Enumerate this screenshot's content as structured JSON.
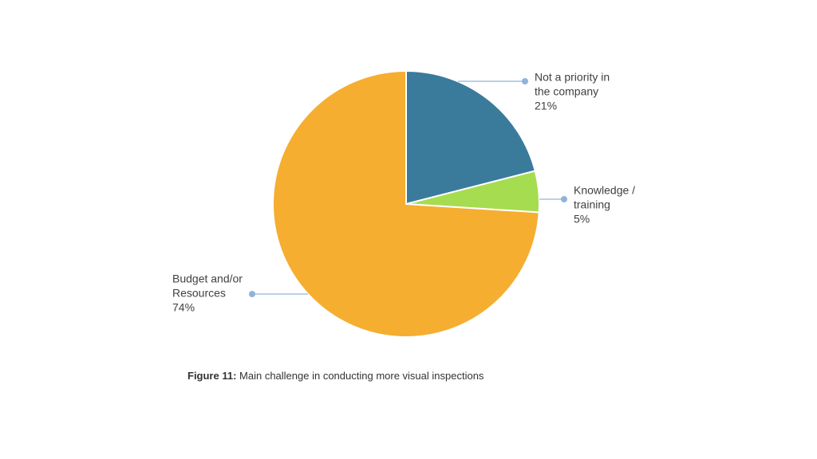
{
  "chart_data": {
    "type": "pie",
    "title": "",
    "slices": [
      {
        "label_lines": [
          "Not a priority in",
          "the company"
        ],
        "value": 21,
        "value_label": "21%",
        "color": "#3a7b9c"
      },
      {
        "label_lines": [
          "Knowledge /",
          "training"
        ],
        "value": 5,
        "value_label": "5%",
        "color": "#a6dc4f"
      },
      {
        "label_lines": [
          "Budget and/or",
          "Resources"
        ],
        "value": 74,
        "value_label": "74%",
        "color": "#f5ae30"
      }
    ],
    "start_angle_deg": 0,
    "direction": "clockwise",
    "leader_line_color": "#8fb3d9",
    "slice_border_color": "#ffffff"
  },
  "caption": {
    "label": "Figure 11:",
    "text": " Main challenge in conducting more visual inspections"
  }
}
